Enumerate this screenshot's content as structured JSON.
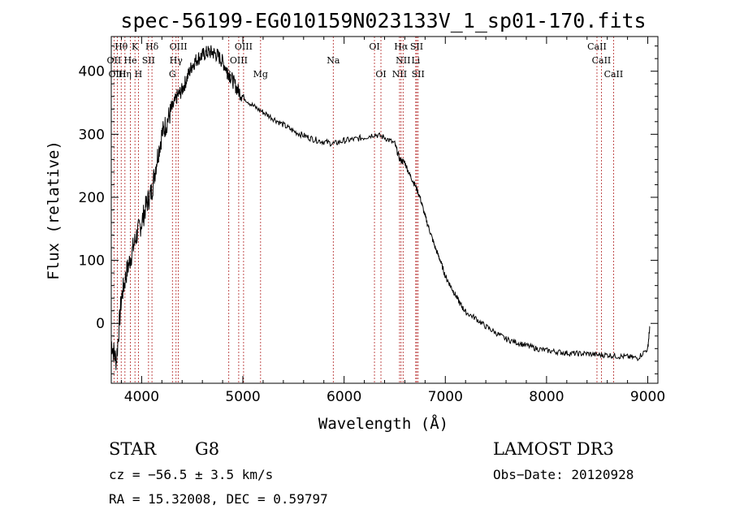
{
  "chart_data": {
    "type": "line",
    "title": "spec-56199-EG010159N023133V_1_sp01-170.fits",
    "xlabel": "Wavelength (Å)",
    "ylabel": "Flux (relative)",
    "xlim": [
      3700,
      9100
    ],
    "ylim": [
      -95,
      455
    ],
    "xticks": [
      4000,
      5000,
      6000,
      7000,
      8000,
      9000
    ],
    "xtick_labels": [
      "4000",
      "5000",
      "6000",
      "7000",
      "8000",
      "9000"
    ],
    "yticks": [
      0,
      100,
      200,
      300,
      400
    ],
    "ytick_labels": [
      "0",
      "100",
      "200",
      "300",
      "400"
    ],
    "series": [
      {
        "name": "spectrum",
        "x": [
          3700,
          3750,
          3800,
          3850,
          3900,
          3950,
          4000,
          4050,
          4100,
          4150,
          4200,
          4250,
          4300,
          4350,
          4400,
          4450,
          4500,
          4550,
          4600,
          4650,
          4700,
          4750,
          4800,
          4850,
          4900,
          4950,
          5000,
          5100,
          5200,
          5300,
          5400,
          5500,
          5600,
          5700,
          5800,
          5900,
          6000,
          6100,
          6200,
          6300,
          6400,
          6500,
          6550,
          6600,
          6650,
          6700,
          6750,
          6800,
          6850,
          6900,
          6950,
          7000,
          7050,
          7100,
          7150,
          7200,
          7300,
          7400,
          7500,
          7600,
          7700,
          7800,
          7900,
          8000,
          8100,
          8200,
          8300,
          8400,
          8500,
          8600,
          8700,
          8800,
          8900,
          9000,
          9020
        ],
        "y": [
          -30,
          -60,
          40,
          80,
          110,
          140,
          160,
          190,
          210,
          260,
          300,
          320,
          340,
          360,
          370,
          390,
          410,
          420,
          425,
          430,
          430,
          425,
          415,
          400,
          385,
          370,
          360,
          345,
          335,
          325,
          315,
          305,
          298,
          292,
          288,
          285,
          290,
          292,
          295,
          300,
          295,
          285,
          260,
          255,
          235,
          220,
          200,
          170,
          145,
          120,
          100,
          75,
          60,
          45,
          30,
          18,
          8,
          -5,
          -15,
          -25,
          -30,
          -35,
          -40,
          -43,
          -45,
          -47,
          -48,
          -48,
          -50,
          -50,
          -52,
          -53,
          -55,
          -40,
          -5
        ]
      }
    ],
    "spectral_lines": [
      {
        "label": "Hθ",
        "wavelength": 3798,
        "row": 1
      },
      {
        "label": "K",
        "wavelength": 3934,
        "row": 1
      },
      {
        "label": "Hδ",
        "wavelength": 4102,
        "row": 1
      },
      {
        "label": "OIII",
        "wavelength": 4363,
        "row": 1
      },
      {
        "label": "OIII",
        "wavelength": 5007,
        "row": 1
      },
      {
        "label": "OI",
        "wavelength": 6300,
        "row": 1
      },
      {
        "label": "Hα",
        "wavelength": 6563,
        "row": 1
      },
      {
        "label": "SII",
        "wavelength": 6717,
        "row": 1
      },
      {
        "label": "CaII",
        "wavelength": 8498,
        "row": 1
      },
      {
        "label": "OII",
        "wavelength": 3727,
        "row": 2
      },
      {
        "label": "He",
        "wavelength": 3889,
        "row": 2
      },
      {
        "label": "SII",
        "wavelength": 4068,
        "row": 2
      },
      {
        "label": "Hγ",
        "wavelength": 4340,
        "row": 2
      },
      {
        "label": "OIII",
        "wavelength": 4959,
        "row": 2
      },
      {
        "label": "Na",
        "wavelength": 5893,
        "row": 2
      },
      {
        "label": "NII",
        "wavelength": 6583,
        "row": 2
      },
      {
        "label": "Li",
        "wavelength": 6708,
        "row": 2
      },
      {
        "label": "CaII",
        "wavelength": 8542,
        "row": 2
      },
      {
        "label": "OIII",
        "wavelength": 3760,
        "row": 3
      },
      {
        "label": "Hη",
        "wavelength": 3835,
        "row": 3
      },
      {
        "label": "H",
        "wavelength": 3968,
        "row": 3
      },
      {
        "label": "G",
        "wavelength": 4304,
        "row": 3
      },
      {
        "label": "β",
        "wavelength": 4861,
        "row": 3
      },
      {
        "label": "Mg",
        "wavelength": 5175,
        "row": 3
      },
      {
        "label": "OI",
        "wavelength": 6364,
        "row": 3
      },
      {
        "label": "NII",
        "wavelength": 6548,
        "row": 3
      },
      {
        "label": "SII",
        "wavelength": 6731,
        "row": 3
      },
      {
        "label": "CaII",
        "wavelength": 8662,
        "row": 3
      }
    ]
  },
  "info": {
    "object_class": "STAR",
    "subclass": "G8",
    "survey": "LAMOST DR3",
    "cz": "cz = −56.5 ± 3.5 km/s",
    "obs_date": "Obs−Date: 20120928",
    "coords": "RA =  15.32008, DEC =    0.59797"
  },
  "colors": {
    "line_marker": "#b22222",
    "spectrum": "#000000",
    "axes": "#000000"
  }
}
